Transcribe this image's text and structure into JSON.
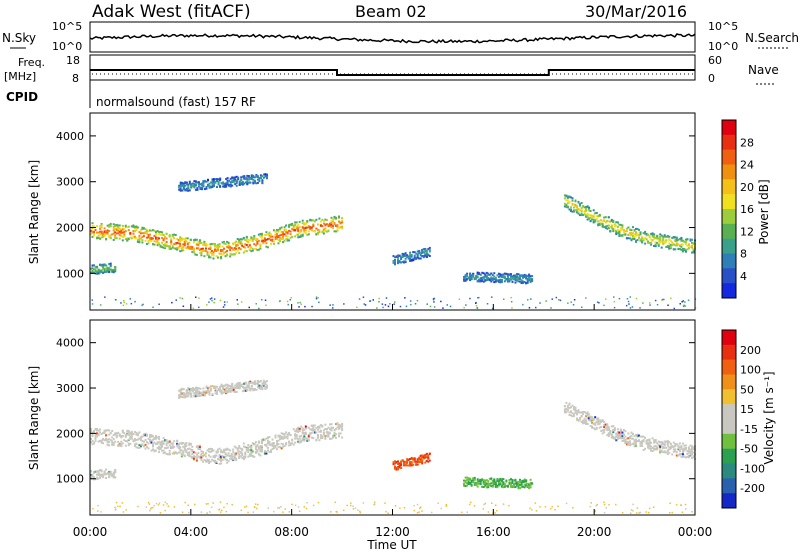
{
  "header": {
    "station": "Adak West (fitACF)",
    "beam": "Beam 02",
    "date": "30/Mar/2016"
  },
  "noise_panel": {
    "left_label": "N.Sky",
    "right_label": "N.Search",
    "ytick_top": "10^5",
    "ytick_bottom": "10^0"
  },
  "freq_panel": {
    "left_label_1": "Freq.",
    "left_label_2": "[MHz]",
    "left_ticks": [
      "18",
      "8"
    ],
    "right_label": "Nave",
    "right_ticks": [
      "60",
      "0"
    ]
  },
  "cpid_panel": {
    "label": "CPID",
    "program": "normalsound (fast) 157 RF"
  },
  "power_panel": {
    "ylabel": "Slant Range [km]",
    "yticks": [
      "1000",
      "2000",
      "3000",
      "4000"
    ],
    "colorbar_label": "Power [dB]",
    "colorbar_ticks": [
      "4",
      "8",
      "12",
      "16",
      "20",
      "24",
      "28"
    ],
    "colorbar_colors": [
      "#1428e0",
      "#2850c8",
      "#2e7fb8",
      "#3aa08a",
      "#58b050",
      "#9ccd3c",
      "#f0e020",
      "#f5c018",
      "#f09010",
      "#f06010",
      "#e83010",
      "#e00010"
    ]
  },
  "velocity_panel": {
    "ylabel": "Slant Range [km]",
    "yticks": [
      "1000",
      "2000",
      "3000",
      "4000"
    ],
    "colorbar_label": "Velocity [m s⁻¹]",
    "colorbar_ticks": [
      "200",
      "100",
      "50",
      "15",
      "-15",
      "-50",
      "-100",
      "-200"
    ],
    "colorbar_colors": [
      "#1428c8",
      "#2a60b0",
      "#2a8a80",
      "#2aa050",
      "#70c040",
      "#c8c8c0",
      "#c8c8c0",
      "#f0c030",
      "#f09018",
      "#f06010",
      "#e83010",
      "#e00010"
    ]
  },
  "xaxis": {
    "label": "Time UT",
    "ticks": [
      "00:00",
      "04:00",
      "08:00",
      "12:00",
      "16:00",
      "20:00",
      "00:00"
    ]
  },
  "chart_data": {
    "type": "heatmap",
    "title": "Adak West (fitACF) Beam 02 30/Mar/2016",
    "xlabel": "Time UT",
    "ylabel": "Slant Range [km]",
    "xlim_hours": [
      0,
      24
    ],
    "ylim_km": [
      200,
      4500
    ],
    "frequency_mhz": {
      "segments": [
        {
          "start": 0,
          "end": 9.8,
          "value": 12
        },
        {
          "start": 9.8,
          "end": 18.2,
          "value": 10
        },
        {
          "start": 18.2,
          "end": 24,
          "value": 12
        }
      ]
    },
    "echo_regions": [
      {
        "name": "E-band",
        "t": [
          0,
          10
        ],
        "range_center": [
          1950,
          1900,
          1700,
          1500,
          1700,
          2000,
          2100
        ],
        "power_db": 20,
        "velocity": -10
      },
      {
        "name": "late-band",
        "t": [
          18.8,
          24
        ],
        "range_center": [
          2600,
          2300,
          2000,
          1800,
          1700,
          1600
        ],
        "power_db": 14,
        "velocity": -10
      },
      {
        "name": "upper-patch",
        "t": [
          3.5,
          7
        ],
        "range_center": [
          2900,
          3000,
          3100
        ],
        "power_db": 6,
        "velocity": -5
      },
      {
        "name": "low-patch",
        "t": [
          0,
          1
        ],
        "range_center": [
          1100,
          1150
        ],
        "power_db": 10,
        "velocity": -5
      },
      {
        "name": "mid-blob",
        "t": [
          12,
          13.5
        ],
        "range_center": [
          1300,
          1400,
          1500
        ],
        "power_db": 6,
        "velocity": -50
      },
      {
        "name": "small-blob",
        "t": [
          14.8,
          17.5
        ],
        "range_center": [
          950,
          900
        ],
        "power_db": 6,
        "velocity": 50
      }
    ]
  }
}
